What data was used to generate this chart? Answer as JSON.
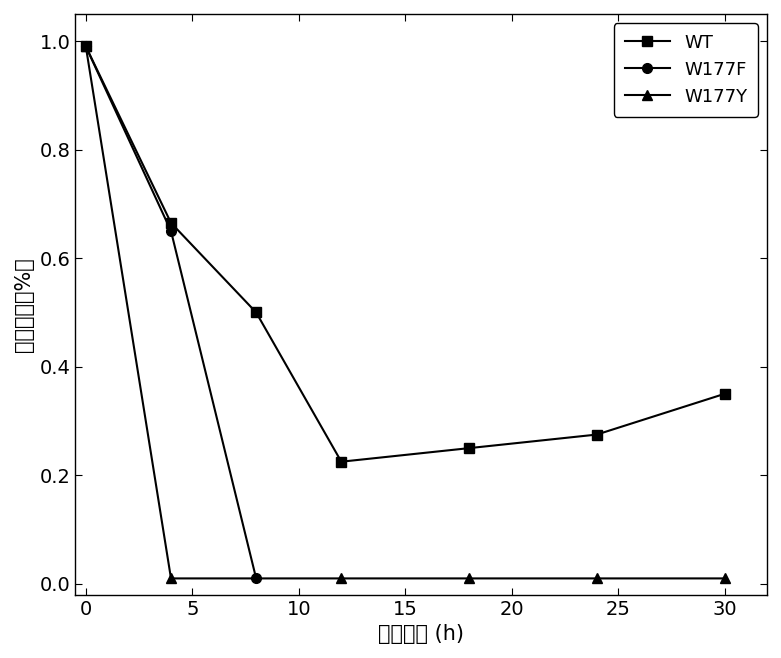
{
  "series": [
    {
      "label": "WT",
      "x": [
        0,
        4,
        8,
        12,
        18,
        24,
        30
      ],
      "y": [
        0.99,
        0.665,
        0.5,
        0.225,
        0.25,
        0.275,
        0.35
      ],
      "marker": "s",
      "color": "black",
      "markersize": 7
    },
    {
      "label": "W177F",
      "x": [
        0,
        4,
        8
      ],
      "y": [
        0.99,
        0.65,
        0.01
      ],
      "marker": "o",
      "color": "black",
      "markersize": 7
    },
    {
      "label": "W177Y",
      "x": [
        0,
        4,
        12,
        18,
        24,
        30
      ],
      "y": [
        0.99,
        0.01,
        0.01,
        0.01,
        0.01,
        0.01
      ],
      "marker": "^",
      "color": "black",
      "markersize": 7
    }
  ],
  "xlabel": "反应时间 (h)",
  "ylabel": "四糖含量（%）",
  "xlim": [
    -0.5,
    32
  ],
  "ylim": [
    -0.02,
    1.05
  ],
  "xticks": [
    0,
    5,
    10,
    15,
    20,
    25,
    30
  ],
  "yticks": [
    0.0,
    0.2,
    0.4,
    0.6,
    0.8,
    1.0
  ],
  "background_color": "#ffffff",
  "legend_loc": "upper right",
  "xlabel_fontsize": 15,
  "ylabel_fontsize": 15,
  "tick_fontsize": 14,
  "legend_fontsize": 13
}
